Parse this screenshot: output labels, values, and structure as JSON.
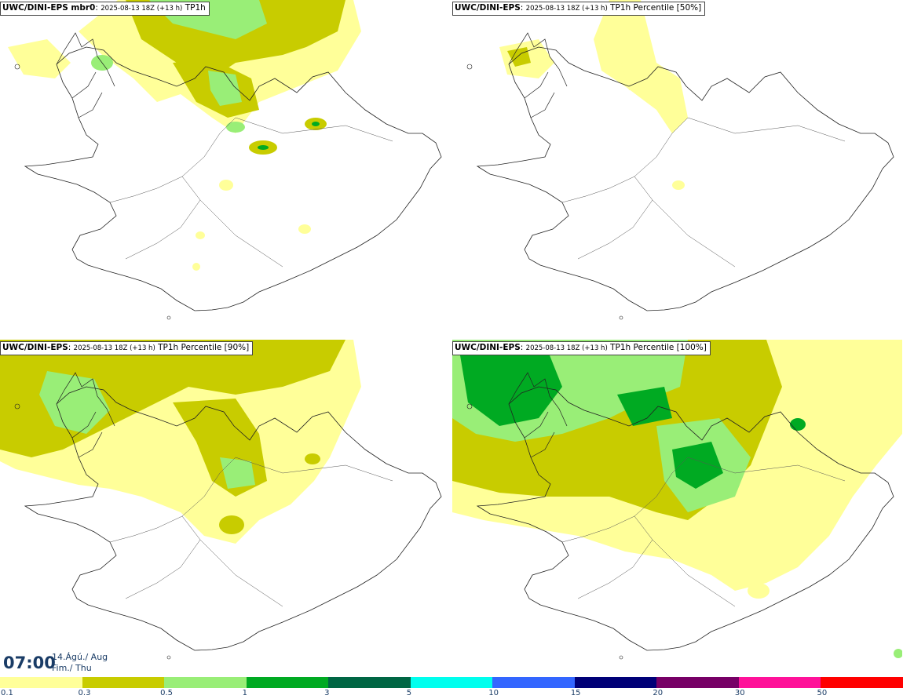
{
  "panels": [
    {
      "model": "UWC/DINI-EPS mbr0",
      "run": "2025-08-13 18Z (+13 h)",
      "field": "TP1h"
    },
    {
      "model": "UWC/DINI-EPS",
      "run": "2025-08-13 18Z (+13 h)",
      "field": "TP1h Percentile [50%]"
    },
    {
      "model": "UWC/DINI-EPS",
      "run": "2025-08-13 18Z (+13 h)",
      "field": "TP1h Percentile [90%]"
    },
    {
      "model": "UWC/DINI-EPS",
      "run": "2025-08-13 18Z (+13 h)",
      "field": "TP1h Percentile [100%]"
    }
  ],
  "valid_time": {
    "time": "07:00",
    "date": "14.Ágú./ Aug",
    "day": "Fim./ Thu"
  },
  "legend": {
    "ticks": [
      "0.1",
      "0.3",
      "0.5",
      "1",
      "3",
      "5",
      "10",
      "15",
      "20",
      "30",
      "50"
    ],
    "colors": [
      "#ffff99",
      "#c8cc00",
      "#99ee77",
      "#00aa22",
      "#006644",
      "#00ffee",
      "#3366ff",
      "#000077",
      "#770066",
      "#ff1199",
      "#ff0000"
    ]
  }
}
